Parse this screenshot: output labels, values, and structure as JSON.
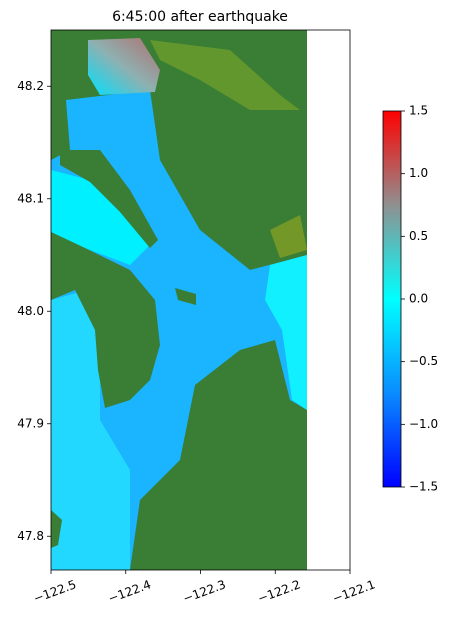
{
  "chart_data": {
    "type": "heatmap",
    "title": "6:45:00 after earthquake",
    "xlim": [
      -122.5,
      -122.1
    ],
    "xticks": [
      {
        "value": -122.5,
        "label": "−122.5"
      },
      {
        "value": -122.4,
        "label": "−122.4"
      },
      {
        "value": -122.3,
        "label": "−122.3"
      },
      {
        "value": -122.2,
        "label": "−122.2"
      },
      {
        "value": -122.1,
        "label": "−122.1"
      }
    ],
    "ylim": [
      47.77,
      48.25
    ],
    "yticks": [
      47.8,
      47.9,
      {
        "value": 48.0,
        "label": "48.0"
      },
      48.1,
      48.2
    ],
    "clim": [
      -1.5,
      1.5
    ],
    "cticks": [
      {
        "value": -1.5,
        "label": "−1.5"
      },
      {
        "value": -1.0,
        "label": "−1.0"
      },
      {
        "value": -0.5,
        "label": "−0.5"
      },
      {
        "value": 0.0,
        "label": "0.0"
      },
      0.5,
      {
        "value": 1.0,
        "label": "1.0"
      },
      1.5
    ],
    "colormap": [
      "#0000ff",
      "#0a8cff",
      "#00ffff",
      "#909090",
      "#ff0000"
    ]
  }
}
